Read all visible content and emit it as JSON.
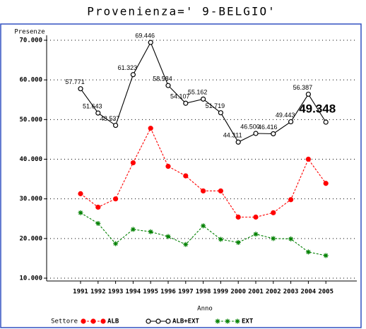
{
  "chart_data": {
    "type": "line",
    "title": "Provenienza=' 9-BELGIO'",
    "ylabel": "Presenze",
    "xlabel": "Anno",
    "legend_title": "Settore",
    "categories": [
      "1991",
      "1992",
      "1993",
      "1994",
      "1995",
      "1996",
      "1997",
      "1998",
      "1999",
      "2000",
      "2001",
      "2002",
      "2003",
      "2004",
      "2005"
    ],
    "ylim": [
      10000,
      70000
    ],
    "yticks": [
      {
        "value": 10000,
        "label": "10.000"
      },
      {
        "value": 20000,
        "label": "20.000"
      },
      {
        "value": 30000,
        "label": "30.000"
      },
      {
        "value": 40000,
        "label": "40.000"
      },
      {
        "value": 50000,
        "label": "50.000"
      },
      {
        "value": 60000,
        "label": "60.000"
      },
      {
        "value": 70000,
        "label": "70.000"
      }
    ],
    "grid": true,
    "series": [
      {
        "name": "ALB",
        "color": "#ff0000",
        "line_style": "dashed",
        "marker": "filled-circle",
        "values": [
          31300,
          27900,
          30000,
          39100,
          47800,
          38200,
          35800,
          32000,
          32000,
          25400,
          25400,
          26500,
          29800,
          40000,
          33900
        ]
      },
      {
        "name": "ALB+EXT",
        "color": "#000000",
        "line_style": "solid",
        "marker": "open-circle",
        "values": [
          57771,
          51643,
          48537,
          61323,
          69446,
          58584,
          54107,
          55162,
          51719,
          44311,
          46500,
          46416,
          49443,
          56387,
          49348
        ],
        "value_labels": [
          "57.771",
          "51.643",
          "48.537",
          "61.323",
          "69.446",
          "58.584",
          "54.107",
          "55.162",
          "51.719",
          "44.311",
          "46.500",
          "46.416",
          "49.443",
          "56.387",
          "49.348"
        ]
      },
      {
        "name": "EXT",
        "color": "#008000",
        "line_style": "dashed",
        "marker": "asterisk",
        "values": [
          26500,
          23800,
          18700,
          22300,
          21700,
          20500,
          18500,
          23200,
          19800,
          19000,
          21100,
          20000,
          19900,
          16600,
          15700
        ]
      }
    ]
  }
}
